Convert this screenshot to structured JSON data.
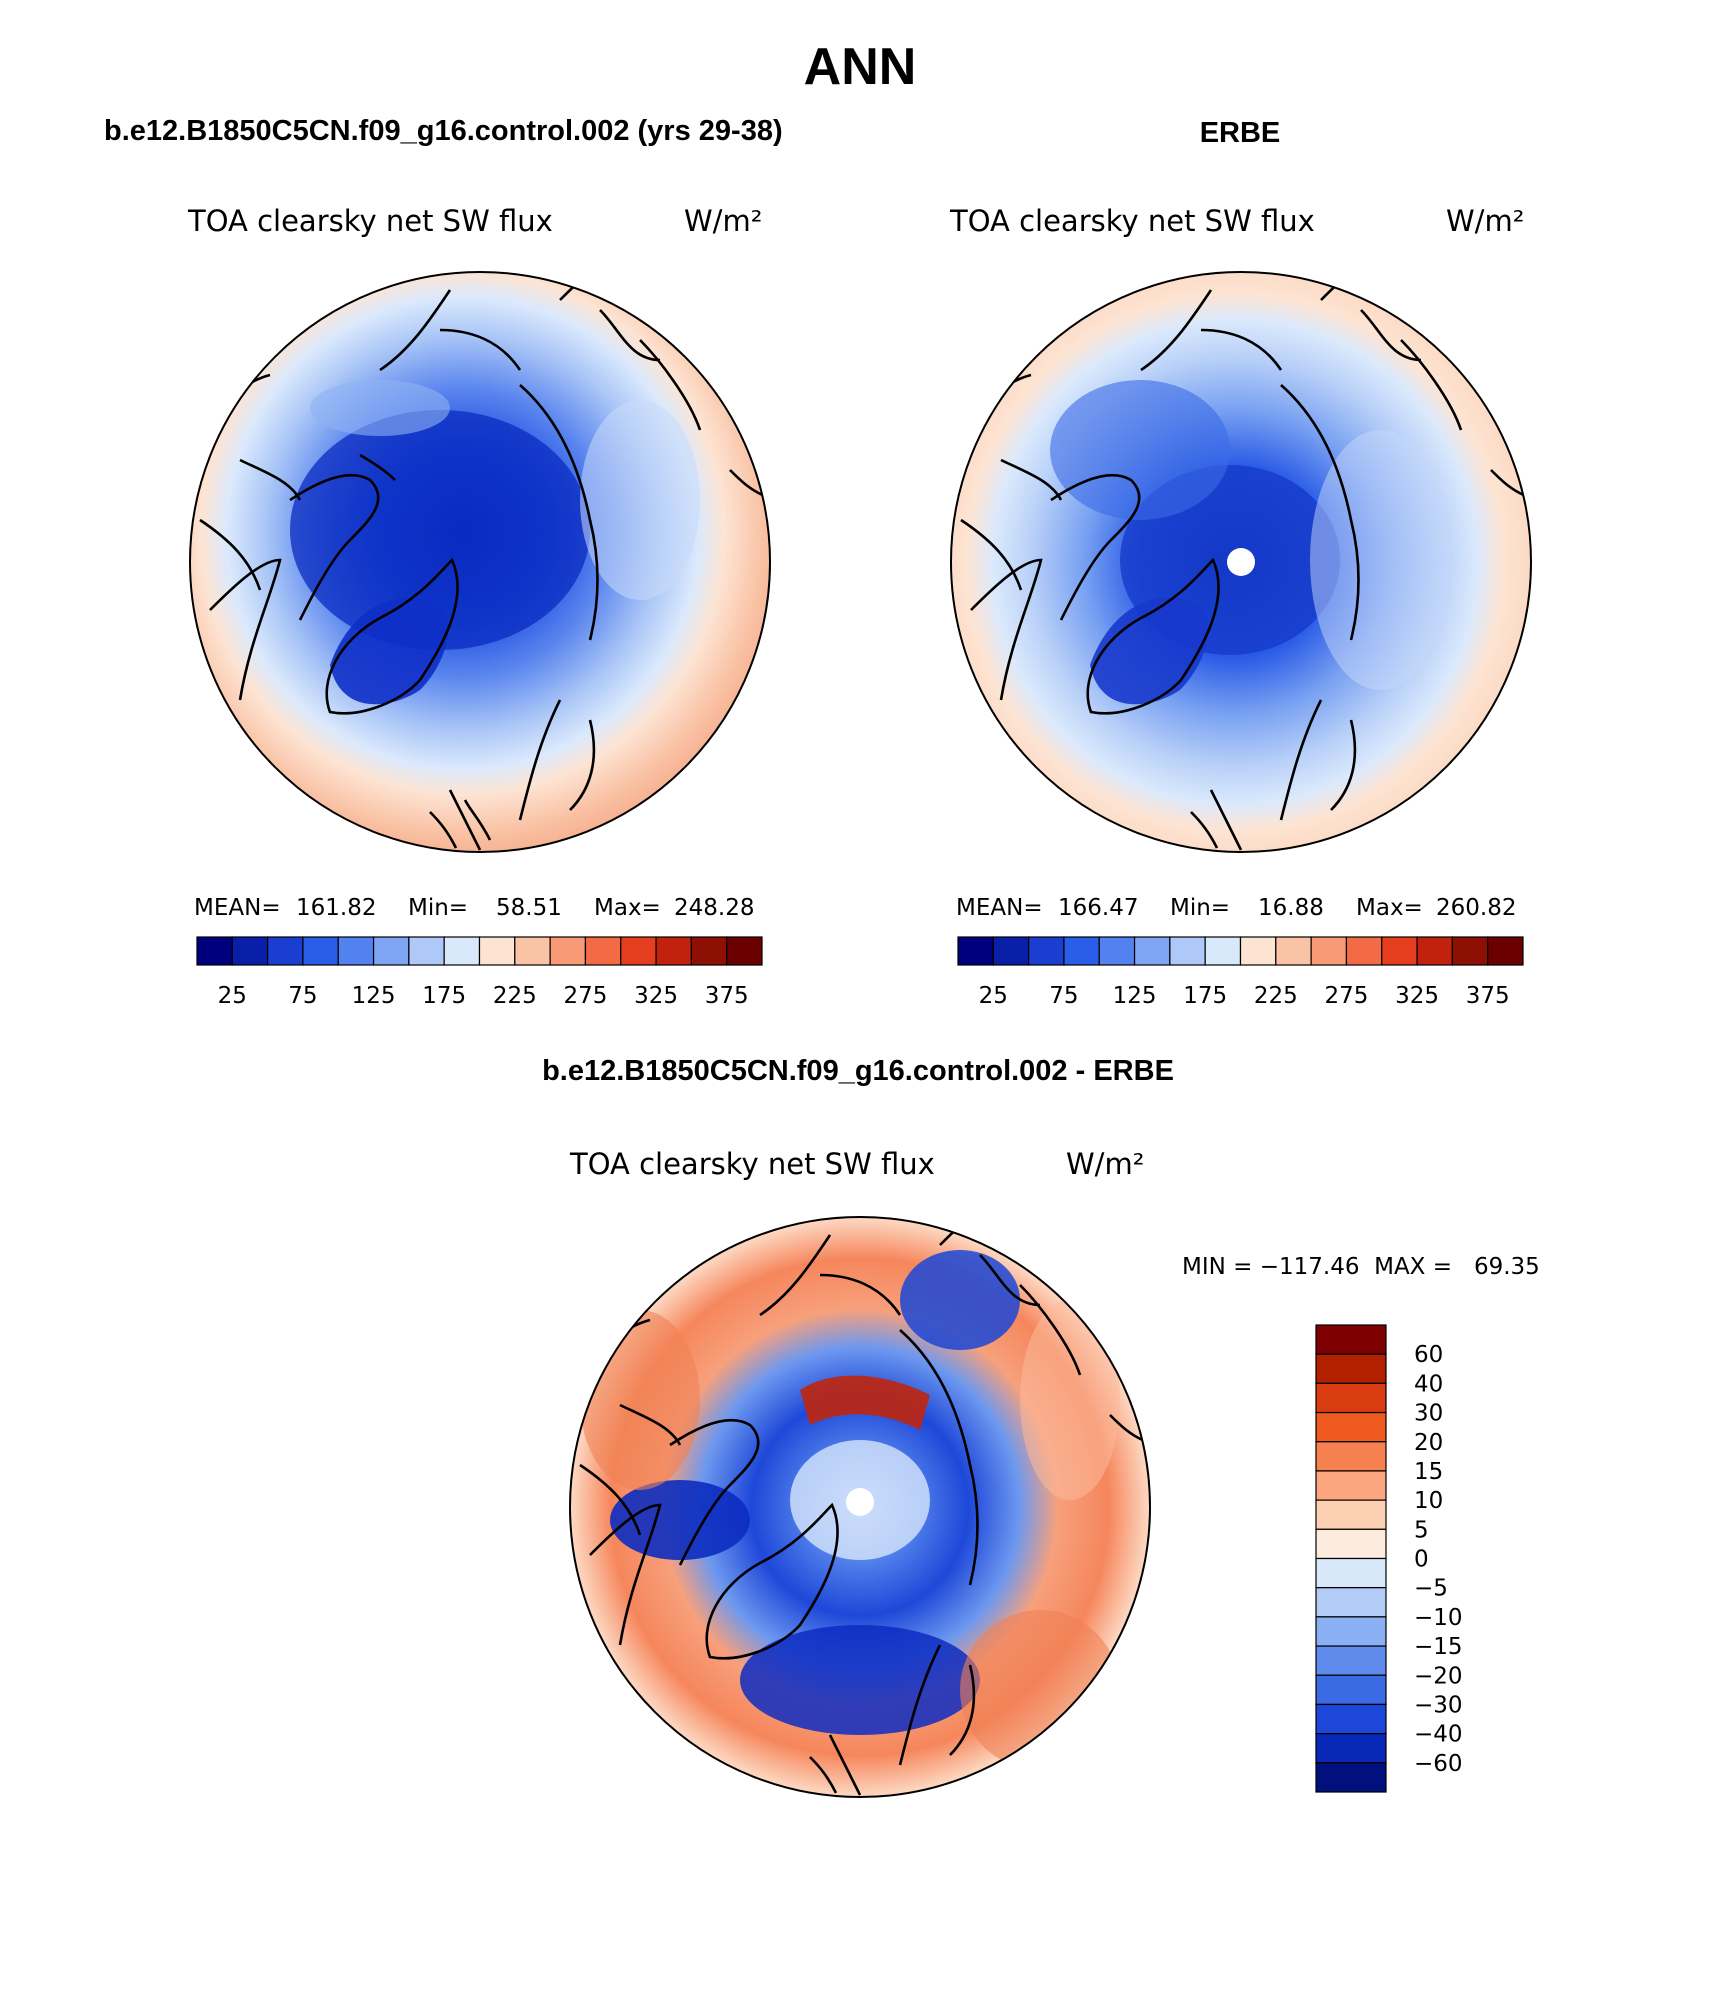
{
  "title": "ANN",
  "panels": [
    {
      "case_label": "b.e12.B1850C5CN.f09_g16.control.002 (yrs 29-38)",
      "variable": "TOA clearsky net SW flux",
      "units": "W/m²",
      "stats": {
        "mean_label": "MEAN=",
        "mean": "161.82",
        "min_label": "Min=",
        "min": "58.51",
        "max_label": "Max=",
        "max": "248.28"
      }
    },
    {
      "case_label": "ERBE",
      "variable": "TOA clearsky net SW flux",
      "units": "W/m²",
      "stats": {
        "mean_label": "MEAN=",
        "mean": "166.47",
        "min_label": "Min=",
        "min": "16.88",
        "max_label": "Max=",
        "max": "260.82"
      }
    }
  ],
  "shared_colorbar": {
    "colors": [
      "#00007f",
      "#0a1fa8",
      "#1a3fd0",
      "#2a5ee8",
      "#5282f0",
      "#7ea5f4",
      "#aec8f8",
      "#d9e9fb",
      "#fde4d2",
      "#fbc3a5",
      "#f89a75",
      "#f26b45",
      "#e43e1e",
      "#c1220e",
      "#8e0f04",
      "#6a0000"
    ],
    "tick_labels": [
      "25",
      "75",
      "125",
      "175",
      "225",
      "275",
      "325",
      "375"
    ]
  },
  "difference_panel": {
    "case_label": "b.e12.B1850C5CN.f09_g16.control.002 - ERBE",
    "variable": "TOA clearsky net SW flux",
    "units": "W/m²",
    "stats": {
      "text": "MIN = −117.46  MAX =   69.35"
    },
    "colorbar": {
      "colors": [
        "#7f0000",
        "#b22000",
        "#d83c10",
        "#ef5a20",
        "#f78050",
        "#fba67e",
        "#fdd0b4",
        "#fdebdd",
        "#d8e8fb",
        "#b3ccf7",
        "#8aaff2",
        "#5f8cec",
        "#3a6ae4",
        "#1c47d8",
        "#0a28b8",
        "#00107f"
      ],
      "tick_labels": [
        "60",
        "40",
        "30",
        "20",
        "15",
        "10",
        "5",
        "0",
        "−5",
        "−10",
        "−15",
        "−20",
        "−30",
        "−40",
        "−60"
      ]
    }
  }
}
